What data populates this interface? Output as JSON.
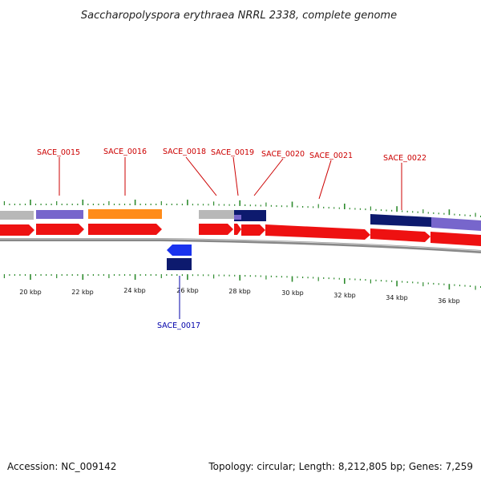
{
  "title": "Saccharopolyspora erythraea NRRL 2338, complete genome",
  "footer": {
    "accession": "Accession: NC_009142",
    "summary": "Topology: circular; Length: 8,212,805 bp; Genes: 7,259"
  },
  "scale": {
    "labels": [
      "20 kbp",
      "22 kbp",
      "24 kbp",
      "26 kbp",
      "28 kbp",
      "30 kbp",
      "32 kbp",
      "34 kbp",
      "36 kbp"
    ]
  },
  "genes": {
    "forward": [
      "SACE_0015",
      "SACE_0016",
      "SACE_0018",
      "SACE_0019",
      "SACE_0020",
      "SACE_0021",
      "SACE_0022"
    ],
    "reverse": [
      "SACE_0017"
    ]
  },
  "colors": {
    "forward_label": "#cc0000",
    "reverse_label": "#0000aa",
    "cds_forward": "#ee1111",
    "cds_reverse": "#1a33ee",
    "feature_gray": "#b8b8b8",
    "feature_lavender": "#7766cc",
    "feature_orange": "#ff8c1a",
    "feature_navy": "#0d1a6e",
    "backbone": "#888888",
    "ticks": "#2e8b2e"
  }
}
